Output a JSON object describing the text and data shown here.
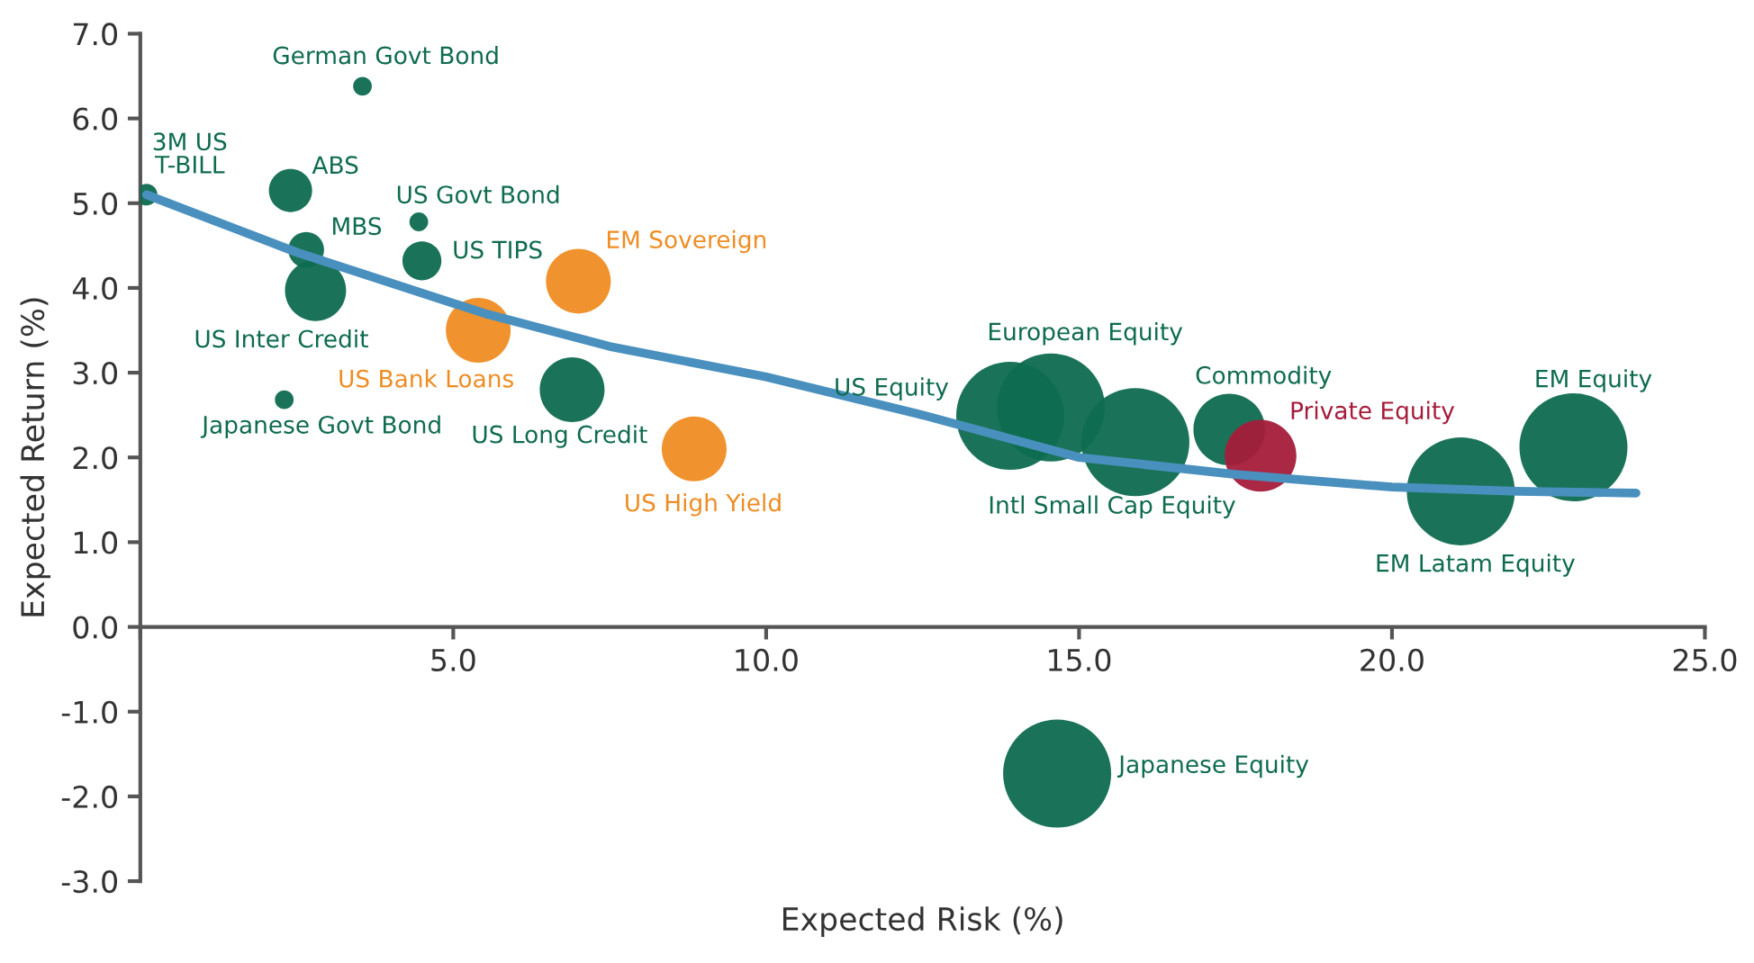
{
  "chart_data": {
    "type": "bubble",
    "xlabel": "Expected Risk (%)",
    "ylabel": "Expected Return (%)",
    "xlim": [
      0,
      25
    ],
    "ylim": [
      -3,
      7
    ],
    "xticks": [
      {
        "value": 0,
        "label": null
      },
      {
        "value": 5,
        "label": "5.0"
      },
      {
        "value": 10,
        "label": "10.0"
      },
      {
        "value": 15,
        "label": "15.0"
      },
      {
        "value": 20,
        "label": "20.0"
      },
      {
        "value": 25,
        "label": "25.0"
      }
    ],
    "yticks": [
      {
        "value": -3,
        "label": "-3.0"
      },
      {
        "value": -2,
        "label": "-2.0"
      },
      {
        "value": -1,
        "label": "-1.0"
      },
      {
        "value": 0,
        "label": "0.0"
      },
      {
        "value": 1,
        "label": "1.0"
      },
      {
        "value": 2,
        "label": "2.0"
      },
      {
        "value": 3,
        "label": "3.0"
      },
      {
        "value": 4,
        "label": "4.0"
      },
      {
        "value": 5,
        "label": "5.0"
      },
      {
        "value": 6,
        "label": "6.0"
      },
      {
        "value": 7,
        "label": "7.0"
      }
    ],
    "grid": false,
    "legend": false,
    "series": [
      {
        "x": [
          0.1,
          3.55,
          2.4,
          2.65,
          2.8,
          2.3,
          4.45,
          4.5,
          5.4,
          7.0,
          6.9,
          8.85,
          13.9,
          14.55,
          15.9,
          17.4,
          17.9,
          21.1,
          22.9,
          14.65
        ],
        "values": [
          5.1,
          6.38,
          5.15,
          4.45,
          3.97,
          2.68,
          4.78,
          4.32,
          3.5,
          4.08,
          2.8,
          2.1,
          2.49,
          2.59,
          2.18,
          2.33,
          2.02,
          1.6,
          2.12,
          -1.73
        ],
        "sizes": [
          0.04,
          0.03,
          0.16,
          0.11,
          0.32,
          0.03,
          0.03,
          0.13,
          0.36,
          0.36,
          0.36,
          0.36,
          1,
          1,
          1,
          0.44,
          0.44,
          1,
          1,
          1
        ],
        "colors": [
          "#0e6b50",
          "#0e6b50",
          "#0e6b50",
          "#0e6b50",
          "#0e6b50",
          "#0e6b50",
          "#0e6b50",
          "#0e6b50",
          "#ef8c22",
          "#ef8c22",
          "#0e6b50",
          "#ef8c22",
          "#0e6b50",
          "#0e6b50",
          "#0e6b50",
          "#0e6b50",
          "#a51c3a",
          "#0e6b50",
          "#0e6b50",
          "#0e6b50"
        ]
      },
      {
        "type": "line",
        "color": "#4a90bf",
        "x": [
          0.1,
          2.5,
          5.5,
          7.5,
          10,
          12.5,
          15,
          17.5,
          20,
          22,
          23.9
        ],
        "values": [
          5.1,
          4.42,
          3.7,
          3.31,
          2.95,
          2.5,
          2.0,
          1.8,
          1.65,
          1.6,
          1.58
        ]
      }
    ],
    "annotations": [
      {
        "text": "3M US\nT-BILL",
        "x": 0.1,
        "y": 5.1
      },
      {
        "text": "German Govt Bond",
        "x": 3.55,
        "y": 6.38
      },
      {
        "text": "ABS",
        "x": 2.4,
        "y": 5.15
      },
      {
        "text": "MBS",
        "x": 2.65,
        "y": 4.45
      },
      {
        "text": "US Inter Credit",
        "x": 2.8,
        "y": 3.97
      },
      {
        "text": "Japanese Govt Bond",
        "x": 2.3,
        "y": 2.68
      },
      {
        "text": "US Govt Bond",
        "x": 4.45,
        "y": 4.78
      },
      {
        "text": "US TIPS",
        "x": 4.5,
        "y": 4.32
      },
      {
        "text": "US Bank Loans",
        "x": 5.4,
        "y": 3.5
      },
      {
        "text": "EM Sovereign",
        "x": 7.0,
        "y": 4.08
      },
      {
        "text": "US Long Credit",
        "x": 6.9,
        "y": 2.8
      },
      {
        "text": "US High Yield",
        "x": 8.85,
        "y": 2.1
      },
      {
        "text": "US Equity",
        "x": 13.9,
        "y": 2.49
      },
      {
        "text": "European Equity",
        "x": 14.55,
        "y": 2.59
      },
      {
        "text": "Intl Small Cap Equity",
        "x": 15.9,
        "y": 2.18
      },
      {
        "text": "Commodity",
        "x": 17.4,
        "y": 2.33
      },
      {
        "text": "Private Equity",
        "x": 17.9,
        "y": 2.02
      },
      {
        "text": "EM Latam Equity",
        "x": 21.1,
        "y": 1.6
      },
      {
        "text": "EM Equity",
        "x": 22.9,
        "y": 2.12
      },
      {
        "text": "Japanese Equity",
        "x": 14.65,
        "y": -1.73
      }
    ]
  }
}
